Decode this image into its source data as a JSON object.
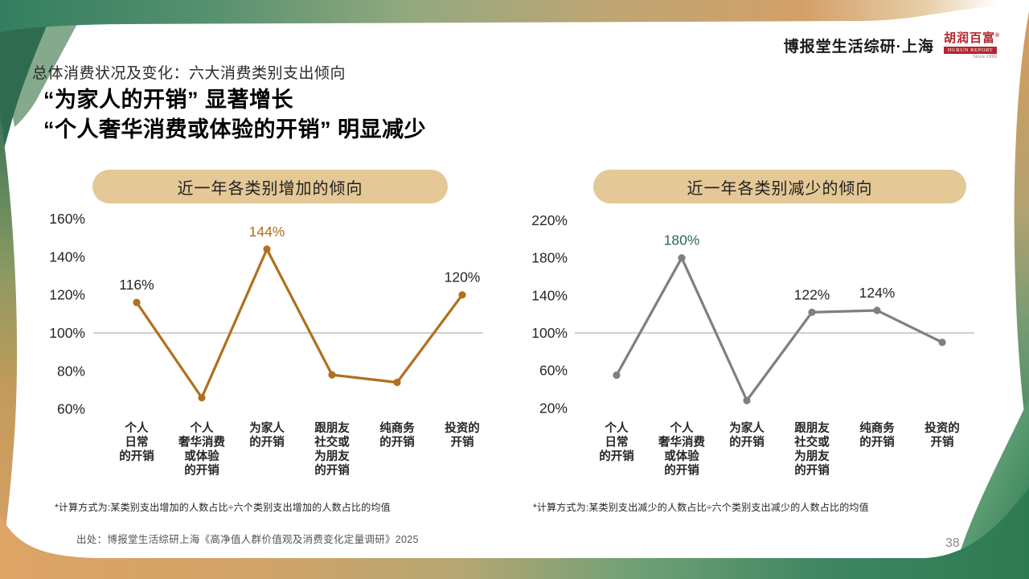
{
  "page": {
    "brand": "博报堂生活综研·上海",
    "logo": {
      "title": "胡润百富",
      "reg": "®",
      "bar_text": "HURUN REPORT",
      "since": "Since 1999"
    },
    "kicker": "总体消费状况及变化：六大消费类别支出倾向",
    "title_line1": "“为家人的开销” 显著增长",
    "title_line2": "“个人奢华消费或体验的开销” 明显减少",
    "source": "出处：博报堂生活综研上海《高净值人群价值观及消费变化定量调研》2025",
    "page_number": "38"
  },
  "chart_data": [
    {
      "type": "line",
      "title": "近一年各类别增加的倾向",
      "categories": [
        "个人\n日常\n的开销",
        "个人\n奢华消费\n或体验\n的开销",
        "为家人\n的开销",
        "跟朋友\n社交或\n为朋友\n的开销",
        "纯商务\n的开销",
        "投资的\n开销"
      ],
      "values": [
        116,
        66,
        144,
        78,
        74,
        120
      ],
      "point_labels": [
        "116%",
        "",
        "144%",
        "",
        "",
        "120%"
      ],
      "point_label_colors": [
        "#262626",
        "",
        "#b0701f",
        "",
        "",
        "#262626"
      ],
      "y_ticks": [
        160,
        140,
        120,
        100,
        80,
        60
      ],
      "y_tick_suffix": "%",
      "ylim": [
        60,
        160
      ],
      "baseline": 100,
      "grid": "baseline-only",
      "legend": "none",
      "xlabel": "",
      "ylabel": "",
      "line_color": "#b0701f",
      "footnote": "*计算方式为:某类别支出增加的人数占比÷六个类别支出增加的人数占比的均值"
    },
    {
      "type": "line",
      "title": "近一年各类别减少的倾向",
      "categories": [
        "个人\n日常\n的开销",
        "个人\n奢华消费\n或体验\n的开销",
        "为家人\n的开销",
        "跟朋友\n社交或\n为朋友\n的开销",
        "纯商务\n的开销",
        "投资的\n开销"
      ],
      "values": [
        55,
        180,
        28,
        122,
        124,
        90
      ],
      "point_labels": [
        "",
        "180%",
        "",
        "122%",
        "124%",
        ""
      ],
      "point_label_colors": [
        "",
        "#2e6a4d",
        "",
        "#262626",
        "#262626",
        ""
      ],
      "y_ticks": [
        220,
        180,
        140,
        100,
        60,
        20
      ],
      "y_tick_suffix": "%",
      "ylim": [
        20,
        220
      ],
      "baseline": 100,
      "grid": "baseline-only",
      "legend": "none",
      "xlabel": "",
      "ylabel": "",
      "line_color": "#7f7f7f",
      "footnote": "*计算方式为:某类别支出减少的人数占比÷六个类别支出减少的人数占比的均值"
    }
  ],
  "colors": {
    "accent_orange": "#b0701f",
    "accent_green": "#2e6a4d",
    "pill_background": "#e4c896",
    "baseline_gray": "#a0a0a0",
    "brand_red": "#b5262c"
  }
}
